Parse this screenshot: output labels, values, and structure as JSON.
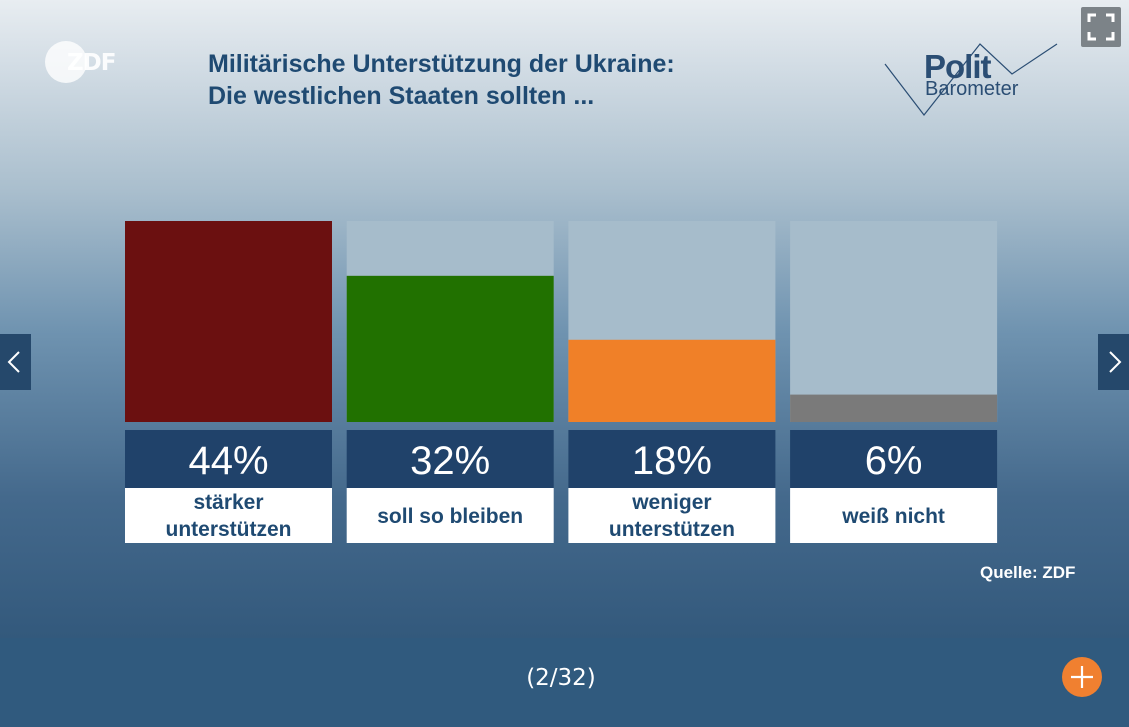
{
  "slide": {
    "title_line1": "Militärische Unterstützung der Ukraine:",
    "title_line2": "Die westlichen Staaten sollten ...",
    "logo_zdf": "ZDF",
    "logo_polit": "Polit",
    "logo_barometer": "Barometer",
    "source": "Quelle: ZDF"
  },
  "navigation": {
    "prev_icon": "chevron-left-icon",
    "next_icon": "chevron-right-icon",
    "fullscreen_icon": "fullscreen-icon",
    "counter": "(2/32)",
    "add_icon": "plus-icon"
  },
  "colors": {
    "bar_track": "#a6bccb",
    "value_box": "#20426a",
    "add_button": "#f08030"
  },
  "chart_data": {
    "type": "bar",
    "categories": [
      [
        "stärker",
        "unterstützen"
      ],
      [
        "soll so bleiben"
      ],
      [
        "weniger",
        "unterstützen"
      ],
      [
        "weiß nicht"
      ]
    ],
    "values": [
      44,
      32,
      18,
      6
    ],
    "value_labels": [
      "44%",
      "32%",
      "18%",
      "6%"
    ],
    "colors": [
      "#6b1010",
      "#217100",
      "#f08028",
      "#7a7a7a"
    ],
    "ylim": [
      0,
      44
    ],
    "title": "",
    "xlabel": "",
    "ylabel": ""
  }
}
